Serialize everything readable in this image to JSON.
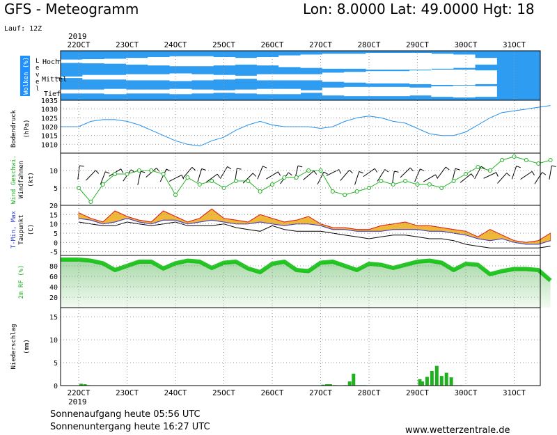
{
  "header": {
    "title": "GFS - Meteogramm",
    "location": "Lon: 8.0000 Lat: 49.0000 Hgt: 18",
    "run": "Lauf: 12Z"
  },
  "footer": {
    "sunrise": "Sonnenaufgang heute 05:56 UTC",
    "sunset": "Sonnenuntergang heute 16:27 UTC",
    "url": "www.wetterzentrale.de"
  },
  "x_axis": {
    "year": "2019",
    "days": [
      "22OCT",
      "23OCT",
      "24OCT",
      "25OCT",
      "26OCT",
      "27OCT",
      "28OCT",
      "29OCT",
      "30OCT",
      "31OCT"
    ]
  },
  "chart_data": [
    {
      "type": "area",
      "panel": "clouds",
      "ylabel": "Wolken (%)",
      "sublabel": "Level",
      "levels": [
        "Hoch",
        "Mittel",
        "Tief"
      ],
      "cloud_coverage_series": [
        {
          "name": "Hoch",
          "values": [
            80,
            75,
            70,
            60,
            50,
            40,
            40,
            50,
            60,
            50,
            30,
            20,
            10,
            10,
            0,
            0,
            0,
            10,
            20,
            60,
            100,
            100
          ]
        },
        {
          "name": "Mittel",
          "values": [
            90,
            70,
            70,
            60,
            60,
            50,
            60,
            70,
            80,
            60,
            60,
            60,
            40,
            30,
            20,
            20,
            10,
            0,
            0,
            10,
            100,
            100
          ]
        },
        {
          "name": "Tief",
          "values": [
            70,
            70,
            60,
            70,
            70,
            60,
            70,
            80,
            70,
            60,
            60,
            80,
            40,
            30,
            30,
            30,
            40,
            20,
            10,
            20,
            100,
            100
          ]
        }
      ]
    },
    {
      "type": "line",
      "panel": "pressure",
      "ylabel": "Bodendruck",
      "unit": "(hPa)",
      "ylim": [
        1005,
        1035
      ],
      "yticks": [
        1010,
        1015,
        1020,
        1025,
        1030,
        1035
      ],
      "x_days": [
        0,
        0.25,
        0.5,
        0.75,
        1,
        1.25,
        1.5,
        1.75,
        2,
        2.25,
        2.5,
        2.75,
        3,
        3.25,
        3.5,
        3.75,
        4,
        4.25,
        4.5,
        4.75,
        5,
        5.25,
        5.5,
        5.75,
        6,
        6.25,
        6.5,
        6.75,
        7,
        7.25,
        7.5,
        7.75,
        8,
        8.25,
        8.5,
        8.75,
        9,
        9.25,
        9.5,
        9.75
      ],
      "values": [
        1020,
        1023,
        1024,
        1024,
        1023,
        1021,
        1018,
        1015,
        1012,
        1010,
        1009,
        1012,
        1014,
        1018,
        1021,
        1023,
        1021,
        1020,
        1020,
        1020,
        1019,
        1020,
        1023,
        1025,
        1026,
        1025,
        1023,
        1022,
        1019,
        1016,
        1015,
        1015,
        1017,
        1021,
        1025,
        1028,
        1029,
        1030,
        1031,
        1032
      ]
    },
    {
      "type": "line",
      "panel": "wind",
      "ylabel": "Wind Geschwi.",
      "ylabel2": "Windfahnen",
      "unit": "(kt)",
      "ylim": [
        0,
        15
      ],
      "yticks": [
        5,
        10
      ],
      "x_days": [
        0,
        0.25,
        0.5,
        0.75,
        1,
        1.25,
        1.5,
        1.75,
        2,
        2.25,
        2.5,
        2.75,
        3,
        3.25,
        3.5,
        3.75,
        4,
        4.25,
        4.5,
        4.75,
        5,
        5.25,
        5.5,
        5.75,
        6,
        6.25,
        6.5,
        6.75,
        7,
        7.25,
        7.5,
        7.75,
        8,
        8.25,
        8.5,
        8.75,
        9,
        9.25,
        9.5,
        9.75
      ],
      "values": [
        5,
        1,
        6,
        9,
        9,
        10,
        10,
        9,
        3,
        8,
        6,
        7,
        5,
        7,
        7,
        4,
        6,
        8,
        8,
        10,
        10,
        4,
        3,
        4,
        5,
        7,
        6,
        7,
        6,
        6,
        5,
        7,
        9,
        11,
        10,
        13,
        14,
        13,
        12,
        13
      ]
    },
    {
      "type": "line",
      "panel": "temperature",
      "ylabel": "T-Min, Max",
      "ylabel2": "Taupunkt",
      "unit": "(C)",
      "ylim": [
        -7,
        20
      ],
      "yticks": [
        -5,
        0,
        5,
        10,
        15,
        20
      ],
      "x_days": [
        0,
        0.25,
        0.5,
        0.75,
        1,
        1.25,
        1.5,
        1.75,
        2,
        2.25,
        2.5,
        2.75,
        3,
        3.25,
        3.5,
        3.75,
        4,
        4.25,
        4.5,
        4.75,
        5,
        5.25,
        5.5,
        5.75,
        6,
        6.25,
        6.5,
        6.75,
        7,
        7.25,
        7.5,
        7.75,
        8,
        8.25,
        8.5,
        8.75,
        9,
        9.25,
        9.5,
        9.75
      ],
      "series": [
        {
          "name": "Max",
          "values": [
            16,
            13,
            11,
            17,
            14,
            12,
            11,
            17,
            14,
            11,
            13,
            18,
            13,
            12,
            11,
            15,
            13,
            11,
            12,
            14,
            10,
            8,
            8,
            7,
            7,
            9,
            10,
            11,
            9,
            9,
            8,
            7,
            6,
            3,
            7,
            4,
            1,
            0,
            1,
            5
          ]
        },
        {
          "name": "Min",
          "values": [
            13,
            12,
            10,
            11,
            13,
            11,
            10,
            12,
            12,
            10,
            11,
            12,
            11,
            10,
            10,
            11,
            10,
            9,
            10,
            10,
            9,
            7,
            7,
            6,
            6,
            6,
            7,
            7,
            7,
            6,
            6,
            5,
            4,
            2,
            1,
            2,
            0,
            -1,
            -1,
            1
          ]
        },
        {
          "name": "Taupunkt",
          "values": [
            11,
            10,
            9,
            9,
            11,
            10,
            9,
            10,
            11,
            9,
            9,
            9,
            10,
            8,
            7,
            6,
            9,
            7,
            6,
            6,
            6,
            5,
            4,
            3,
            2,
            3,
            4,
            4,
            3,
            2,
            2,
            1,
            -1,
            -2,
            -3,
            -3,
            -3,
            -3,
            -3,
            -2
          ]
        }
      ]
    },
    {
      "type": "area",
      "panel": "humidity",
      "ylabel": "2m RF (%)",
      "ylim": [
        0,
        100
      ],
      "yticks": [
        20,
        40,
        60,
        80
      ],
      "x_days": [
        0,
        0.25,
        0.5,
        0.75,
        1,
        1.25,
        1.5,
        1.75,
        2,
        2.25,
        2.5,
        2.75,
        3,
        3.25,
        3.5,
        3.75,
        4,
        4.25,
        4.5,
        4.75,
        5,
        5.25,
        5.5,
        5.75,
        6,
        6.25,
        6.5,
        6.75,
        7,
        7.25,
        7.5,
        7.75,
        8,
        8.25,
        8.5,
        8.75,
        9,
        9.25,
        9.5,
        9.75
      ],
      "values": [
        92,
        90,
        85,
        72,
        80,
        88,
        88,
        75,
        85,
        90,
        88,
        76,
        86,
        88,
        75,
        68,
        84,
        88,
        72,
        70,
        86,
        88,
        80,
        72,
        84,
        82,
        76,
        82,
        88,
        90,
        86,
        72,
        84,
        82,
        64,
        70,
        74,
        74,
        72,
        52
      ]
    },
    {
      "type": "bar",
      "panel": "precipitation",
      "ylabel": "Niederschlag",
      "unit": "(mm)",
      "ylim": [
        0,
        17
      ],
      "yticks": [
        0,
        5,
        10,
        15
      ],
      "x_days": [
        0.05,
        0.13,
        0.2,
        5.05,
        5.13,
        5.2,
        5.3,
        5.5,
        5.6,
        5.68,
        5.75,
        5.82,
        5.9,
        7.05,
        7.1,
        7.2,
        7.3,
        7.4,
        7.5,
        7.6,
        7.7,
        7.8,
        7.9
      ],
      "values": [
        0.4,
        0.3,
        0.1,
        0.2,
        0.3,
        0.3,
        0.1,
        0.1,
        0.9,
        2.6,
        0.1,
        0.1,
        0.1,
        1.4,
        0.9,
        1.9,
        3.2,
        4.3,
        2.1,
        2.8,
        1.8,
        0.1,
        0.1
      ]
    }
  ]
}
